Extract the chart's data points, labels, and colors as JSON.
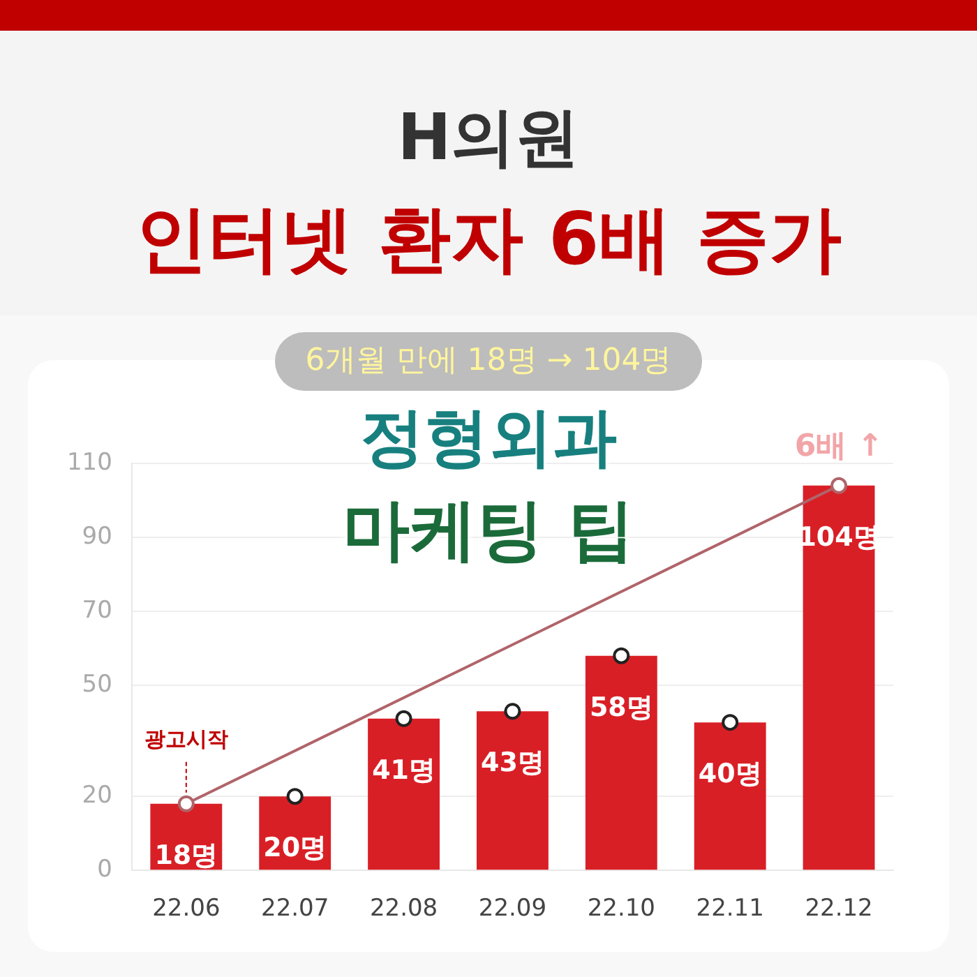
{
  "chart_data": {
    "type": "bar",
    "title": "H의원",
    "subtitle": "인터넷 환자 6배 증가",
    "categories": [
      "22.06",
      "22.07",
      "22.08",
      "22.09",
      "22.10",
      "22.11",
      "22.12"
    ],
    "series": [
      {
        "color": "#d91f26",
        "values": [
          18,
          20,
          41,
          43,
          58,
          40,
          104
        ],
        "value_labels": [
          "18명",
          "20명",
          "41명",
          "43명",
          "58명",
          "40명",
          "104명"
        ]
      },
      {
        "type": "line",
        "color": "#b0646a",
        "x": [
          "22.06",
          "22.12"
        ],
        "values": [
          18,
          104
        ]
      },
      {
        "type": "scatter",
        "color": "#222222",
        "x": [
          "22.07",
          "22.08",
          "22.09",
          "22.10",
          "22.11"
        ],
        "values": [
          20,
          41,
          43,
          58,
          40
        ]
      }
    ],
    "ylim": [
      0,
      110
    ],
    "yticks": [
      0,
      20,
      50,
      70,
      90,
      110
    ],
    "grid": "y",
    "marker": "circle",
    "annotations": [
      "6개월 만에 18명 → 104명",
      "정형외과",
      "마케팅 팁",
      {
        "text": "6배 ↑",
        "x": "22.12",
        "y": 104
      },
      {
        "text": "광고시작",
        "x": "22.06",
        "y": 18
      }
    ]
  }
}
